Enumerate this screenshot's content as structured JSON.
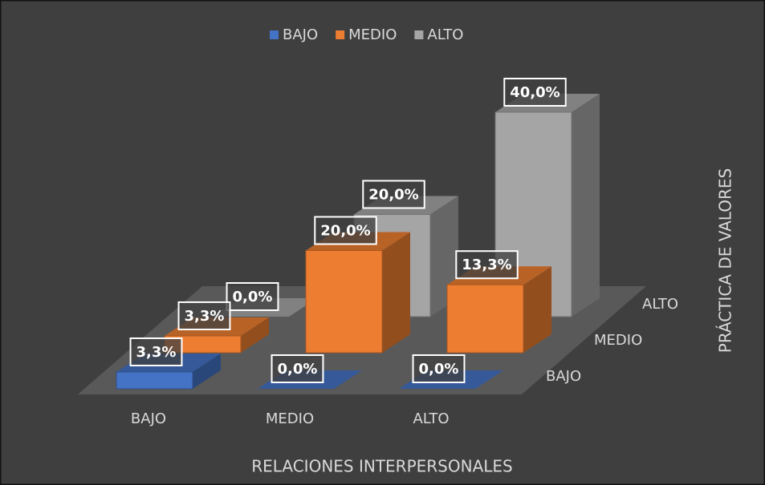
{
  "chart_data": {
    "type": "bar3d",
    "x_label": "RELACIONES INTERPERSONALES",
    "z_label": "PRÁCTICA DE VALORES",
    "categories": [
      "BAJO",
      "MEDIO",
      "ALTO"
    ],
    "ylim": [
      0,
      40
    ],
    "series": [
      {
        "name": "BAJO",
        "color": "#4472c4",
        "values": [
          3.3,
          0,
          0
        ],
        "value_labels": [
          "3,3%",
          "0,0%",
          "0,0%"
        ]
      },
      {
        "name": "MEDIO",
        "color": "#ed7d31",
        "values": [
          3.3,
          20,
          13.3
        ],
        "value_labels": [
          "3,3%",
          "20,0%",
          "13,3%"
        ]
      },
      {
        "name": "ALTO",
        "color": "#a5a5a5",
        "values": [
          0,
          20,
          40
        ],
        "value_labels": [
          "0,0%",
          "20,0%",
          "40,0%"
        ]
      }
    ],
    "legend": "top"
  }
}
